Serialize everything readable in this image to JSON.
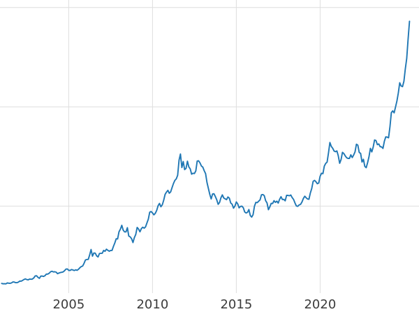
{
  "chart": {
    "background_color": "#ffffff",
    "grid_color": "#dedede",
    "line_color": "#1f77b4",
    "tick_label_color": "#3b3b3b",
    "x_tick_labels": [
      "2005",
      "2010",
      "2015",
      "2020"
    ]
  },
  "chart_data": {
    "type": "line",
    "title": "",
    "xlabel": "",
    "ylabel": "",
    "legend": "none",
    "grid": true,
    "ytick_labels_visible": false,
    "x_start": 2001.0,
    "x_step": 0.0833333,
    "xlim": [
      2000.9,
      2025.9
    ],
    "ylim": [
      150,
      3690
    ],
    "xticks": [
      2005,
      2010,
      2015,
      2020
    ],
    "ygrid_values": [
      1200,
      2400,
      3600
    ],
    "values": [
      266,
      262,
      263,
      261,
      272,
      270,
      268,
      272,
      284,
      283,
      276,
      276,
      282,
      295,
      294,
      303,
      314,
      321,
      313,
      310,
      319,
      317,
      319,
      333,
      357,
      359,
      340,
      328,
      355,
      356,
      351,
      360,
      379,
      379,
      389,
      407,
      414,
      405,
      407,
      403,
      384,
      392,
      398,
      401,
      405,
      420,
      439,
      442,
      424,
      424,
      434,
      429,
      422,
      431,
      425,
      437,
      456,
      470,
      477,
      510,
      550,
      555,
      557,
      611,
      676,
      596,
      634,
      632,
      599,
      586,
      628,
      630,
      631,
      665,
      655,
      680,
      667,
      656,
      665,
      665,
      713,
      755,
      806,
      804,
      890,
      922,
      968,
      910,
      889,
      889,
      940,
      839,
      829,
      807,
      760,
      820,
      858,
      943,
      924,
      890,
      928,
      946,
      934,
      949,
      996,
      1043,
      1127,
      1135,
      1118,
      1095,
      1113,
      1149,
      1205,
      1233,
      1193,
      1216,
      1271,
      1342,
      1370,
      1391,
      1356,
      1373,
      1424,
      1473,
      1511,
      1529,
      1573,
      1756,
      1830,
      1666,
      1739,
      1641,
      1656,
      1743,
      1674,
      1650,
      1586,
      1597,
      1594,
      1626,
      1745,
      1747,
      1722,
      1685,
      1671,
      1628,
      1593,
      1486,
      1414,
      1343,
      1287,
      1347,
      1349,
      1316,
      1276,
      1222,
      1244,
      1301,
      1336,
      1299,
      1288,
      1279,
      1311,
      1296,
      1238,
      1223,
      1176,
      1201,
      1251,
      1227,
      1179,
      1197,
      1199,
      1181,
      1130,
      1118,
      1125,
      1159,
      1086,
      1068,
      1097,
      1200,
      1246,
      1242,
      1260,
      1276,
      1337,
      1340,
      1327,
      1266,
      1238,
      1157,
      1192,
      1234,
      1231,
      1266,
      1246,
      1260,
      1237,
      1283,
      1314,
      1280,
      1282,
      1264,
      1331,
      1330,
      1325,
      1334,
      1303,
      1281,
      1238,
      1202,
      1198,
      1215,
      1221,
      1250,
      1292,
      1320,
      1301,
      1286,
      1284,
      1359,
      1413,
      1499,
      1511,
      1495,
      1471,
      1479,
      1561,
      1597,
      1592,
      1683,
      1716,
      1732,
      1843,
      1969,
      1922,
      1900,
      1866,
      1858,
      1867,
      1808,
      1718,
      1762,
      1850,
      1835,
      1807,
      1784,
      1777,
      1777,
      1820,
      1787,
      1817,
      1856,
      1948,
      1937,
      1848,
      1837,
      1733,
      1766,
      1681,
      1665,
      1725,
      1798,
      1898,
      1855,
      1913,
      1999,
      1992,
      1943,
      1951,
      1918,
      1916,
      1897,
      1984,
      2036,
      2034,
      2025,
      2158,
      2330,
      2351,
      2327,
      2398,
      2470,
      2568,
      2690,
      2651,
      2644,
      2708,
      2858,
      2983,
      3218,
      3434
    ]
  }
}
